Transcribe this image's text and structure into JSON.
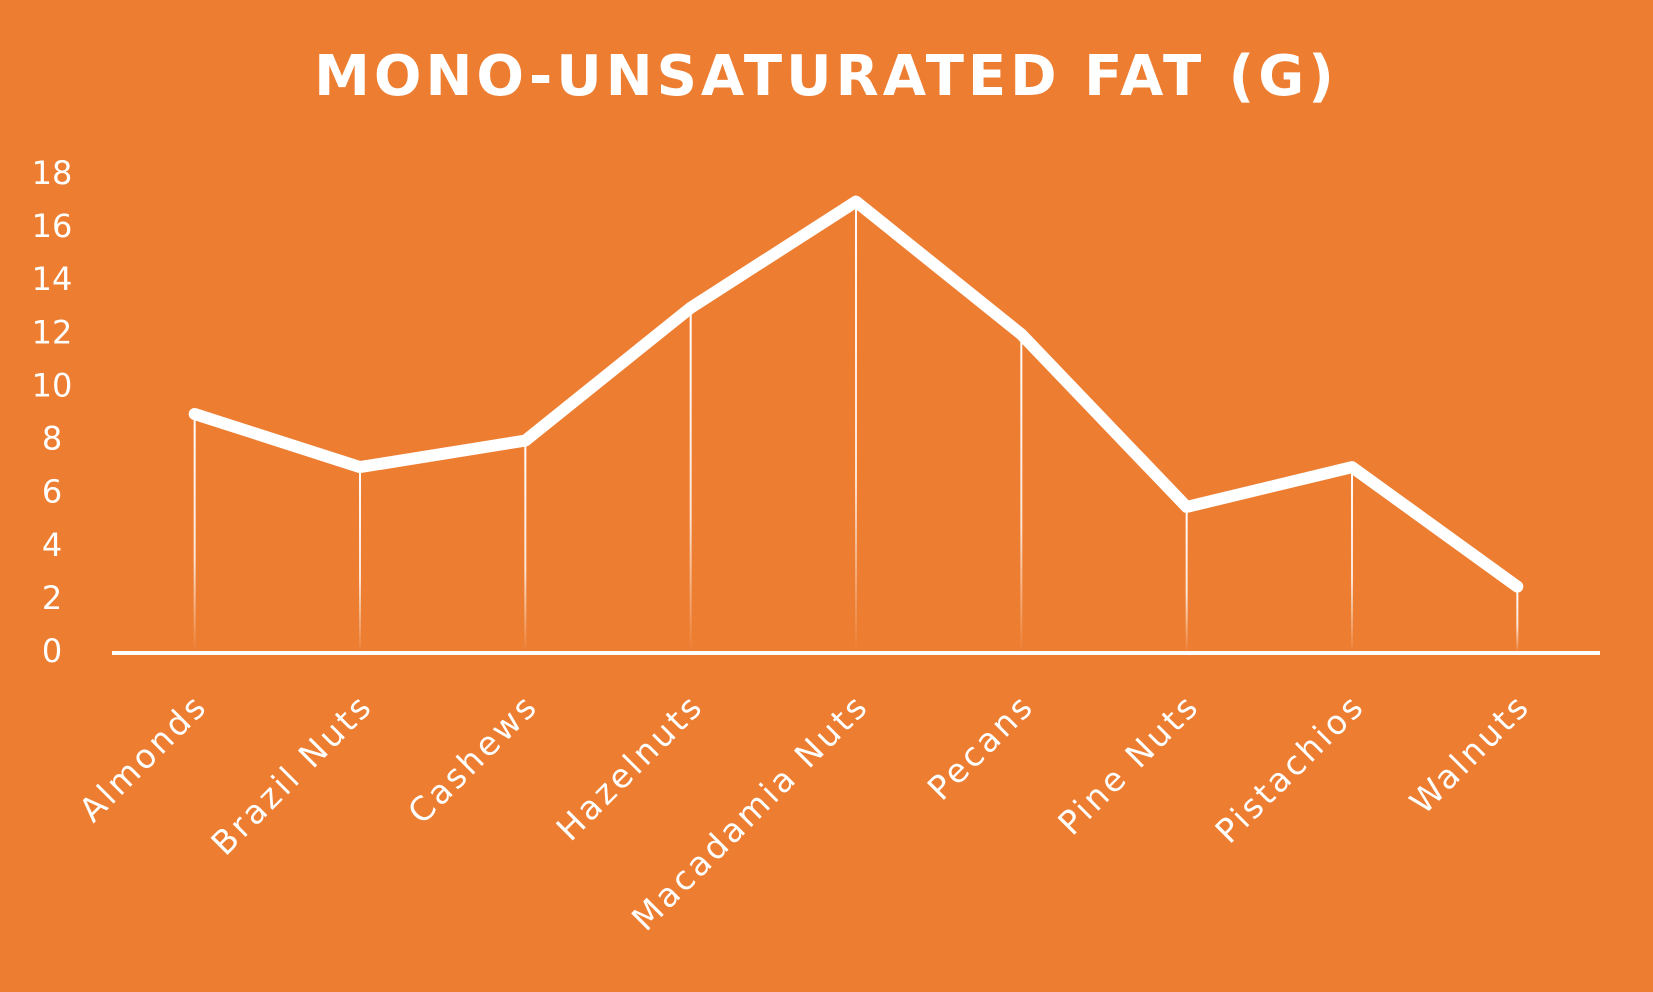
{
  "chart_data": {
    "type": "line",
    "title": "MONO-UNSATURATED FAT (G)",
    "categories": [
      "Almonds",
      "Brazil Nuts",
      "Cashews",
      "Hazelnuts",
      "Macadamia Nuts",
      "Pecans",
      "Pine Nuts",
      "Pistachios",
      "Walnuts"
    ],
    "values": [
      9,
      7,
      8,
      13,
      17,
      12,
      5.5,
      7,
      2.5
    ],
    "color": "#ffffff",
    "ylim": [
      0,
      18
    ],
    "yticks": [
      0,
      2,
      4,
      6,
      8,
      10,
      12,
      14,
      16,
      18
    ]
  }
}
